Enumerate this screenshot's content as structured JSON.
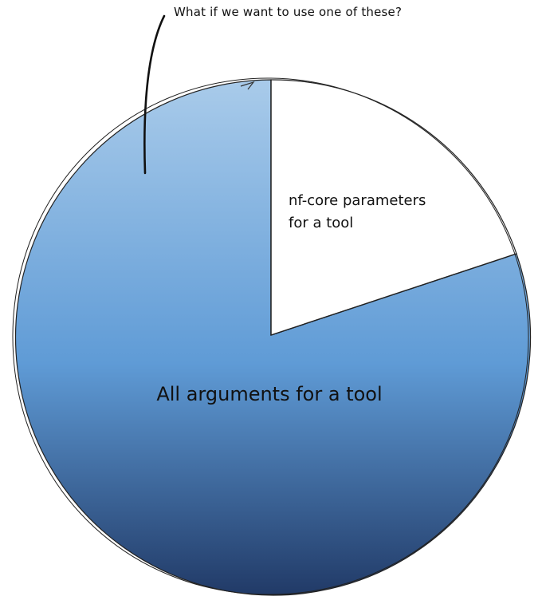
{
  "diagram": {
    "annotation": "What if we want to use one of these?",
    "segments": [
      {
        "id": "all-arguments",
        "label": "All arguments for a tool",
        "style": "gradient-blue"
      },
      {
        "id": "nfcore-parameters",
        "label_lines": [
          "nf-core parameters",
          "for a tool"
        ],
        "style": "white"
      }
    ]
  },
  "colors": {
    "gradient_top": "#a9cbea",
    "gradient_mid": "#5f9bd6",
    "gradient_bottom": "#213a67",
    "outline": "#222222",
    "slice_fill": "#ffffff",
    "text": "#111111"
  }
}
